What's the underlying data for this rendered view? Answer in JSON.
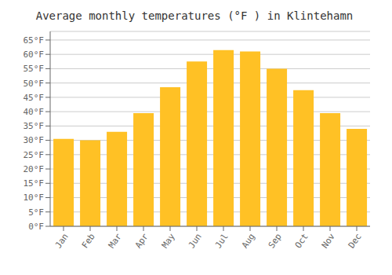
{
  "chart_data": {
    "type": "bar",
    "title": "Average monthly temperatures (°F ) in Klintehamn",
    "categories": [
      "Jan",
      "Feb",
      "Mar",
      "Apr",
      "May",
      "Jun",
      "Jul",
      "Aug",
      "Sep",
      "Oct",
      "Nov",
      "Dec"
    ],
    "values": [
      30.5,
      30.0,
      33.0,
      39.5,
      48.5,
      57.5,
      61.5,
      61.0,
      55.0,
      47.5,
      39.5,
      34.0
    ],
    "color": "#FFC125",
    "ylim": [
      0,
      68
    ],
    "yticks": [
      {
        "value": 0,
        "label": "0°F"
      },
      {
        "value": 5,
        "label": "5°F"
      },
      {
        "value": 10,
        "label": "10°F"
      },
      {
        "value": 15,
        "label": "15°F"
      },
      {
        "value": 20,
        "label": "20°F"
      },
      {
        "value": 25,
        "label": "25°F"
      },
      {
        "value": 30,
        "label": "30°F"
      },
      {
        "value": 35,
        "label": "35°F"
      },
      {
        "value": 40,
        "label": "40°F"
      },
      {
        "value": 45,
        "label": "45°F"
      },
      {
        "value": 50,
        "label": "50°F"
      },
      {
        "value": 55,
        "label": "55°F"
      },
      {
        "value": 60,
        "label": "60°F"
      },
      {
        "value": 65,
        "label": "65°F"
      }
    ],
    "grid": true
  }
}
